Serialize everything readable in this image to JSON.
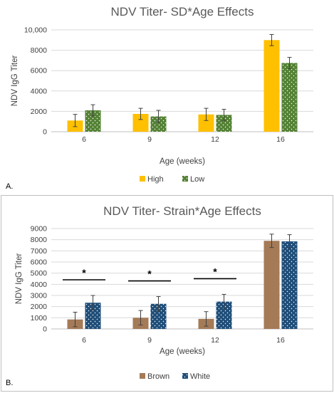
{
  "colors": {
    "high": "#FFC000",
    "low": "#548235",
    "brown": "#A47A57",
    "white": "#1F4E79",
    "grid": "#D9D9D9",
    "axis": "#BFBFBF"
  },
  "chart_data": [
    {
      "type": "bar",
      "panel_label": "A.",
      "title": "NDV Titer- SD*Age Effects",
      "xlabel": "Age (weeks)",
      "ylabel": "NDV IgG Titer",
      "categories": [
        "6",
        "9",
        "12",
        "16"
      ],
      "ylim": [
        0,
        10000
      ],
      "yticks": [
        0,
        2000,
        4000,
        6000,
        8000,
        10000
      ],
      "ytick_labels": [
        "0",
        "2000",
        "4000",
        "6000",
        "8000",
        "10,000"
      ],
      "grid": true,
      "legend": "bottom",
      "series": [
        {
          "name": "High",
          "color_key": "high",
          "pattern": "solid",
          "values": [
            1100,
            1750,
            1700,
            9000
          ],
          "errors": [
            600,
            550,
            600,
            550
          ]
        },
        {
          "name": "Low",
          "color_key": "low",
          "pattern": "dots",
          "values": [
            2100,
            1500,
            1650,
            6750
          ],
          "errors": [
            550,
            600,
            550,
            550
          ]
        }
      ],
      "annotations": []
    },
    {
      "type": "bar",
      "panel_label": "B.",
      "title": "NDV Titer- Strain*Age Effects",
      "xlabel": "Age (weeks)",
      "ylabel": "NDV IgG Titer",
      "categories": [
        "6",
        "9",
        "12",
        "16"
      ],
      "ylim": [
        0,
        9000
      ],
      "yticks": [
        0,
        1000,
        2000,
        3000,
        4000,
        5000,
        6000,
        7000,
        8000,
        9000
      ],
      "ytick_labels": [
        "0",
        "1000",
        "2000",
        "3000",
        "4000",
        "5000",
        "6000",
        "7000",
        "8000",
        "9000"
      ],
      "grid": true,
      "legend": "bottom",
      "series": [
        {
          "name": "Brown",
          "color_key": "brown",
          "pattern": "solid",
          "values": [
            850,
            1000,
            900,
            7900
          ],
          "errors": [
            650,
            650,
            650,
            600
          ]
        },
        {
          "name": "White",
          "color_key": "white",
          "pattern": "dots",
          "values": [
            2350,
            2250,
            2450,
            7850
          ],
          "errors": [
            650,
            650,
            650,
            600
          ]
        }
      ],
      "annotations": [
        {
          "category_index": 0,
          "text": "*"
        },
        {
          "category_index": 1,
          "text": "*"
        },
        {
          "category_index": 2,
          "text": "*"
        }
      ]
    }
  ]
}
